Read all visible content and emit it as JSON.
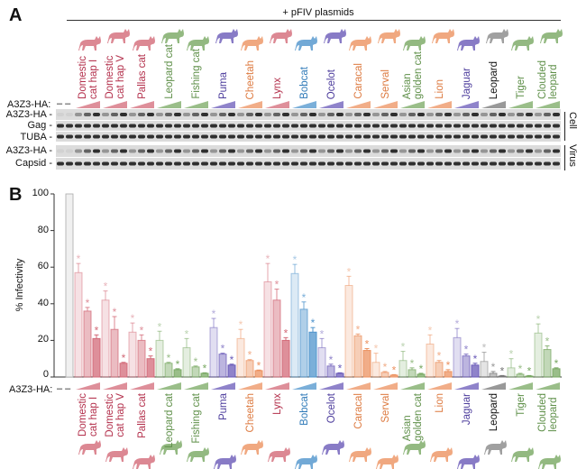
{
  "panel_a": {
    "label": "A",
    "header": "+ pFIV plasmids",
    "dose_label": "A3Z3-HA:",
    "control_marks": "– –",
    "rows": [
      "A3Z3-HA -",
      "Gag -",
      "TUBA -",
      "A3Z3-HA -",
      "Capsid -"
    ],
    "groups": [
      "Cell",
      "Virus"
    ]
  },
  "panel_b": {
    "label": "B",
    "dose_label": "A3Z3-HA:",
    "control_marks": "– –"
  },
  "species": [
    {
      "name": "Domestic\ncat hap I",
      "color": "#d36a78",
      "text": "#b32f4b"
    },
    {
      "name": "Domestic\ncat hap V",
      "color": "#d36a78",
      "text": "#b32f4b"
    },
    {
      "name": "Pallas cat",
      "color": "#d36a78",
      "text": "#b32f4b"
    },
    {
      "name": "Leopard cat",
      "color": "#78a862",
      "text": "#5e8f48"
    },
    {
      "name": "Fishing cat",
      "color": "#78a862",
      "text": "#5e8f48"
    },
    {
      "name": "Puma",
      "color": "#6a5ab8",
      "text": "#4c3c9c"
    },
    {
      "name": "Cheetah",
      "color": "#ec9260",
      "text": "#dd7a40"
    },
    {
      "name": "Lynx",
      "color": "#d36a78",
      "text": "#b32f4b"
    },
    {
      "name": "Bobcat",
      "color": "#4f94cc",
      "text": "#2f7ab8"
    },
    {
      "name": "Ocelot",
      "color": "#6a5ab8",
      "text": "#4c3c9c"
    },
    {
      "name": "Caracal",
      "color": "#ec9260",
      "text": "#dd7a40"
    },
    {
      "name": "Serval",
      "color": "#ec9260",
      "text": "#dd7a40"
    },
    {
      "name": "Asian\ngolden cat",
      "color": "#78a862",
      "text": "#5e8f48"
    },
    {
      "name": "Lion",
      "color": "#ec9260",
      "text": "#dd7a40"
    },
    {
      "name": "Jaguar",
      "color": "#6a5ab8",
      "text": "#4c3c9c"
    },
    {
      "name": "Leopard",
      "color": "#777777",
      "text": "#111111"
    },
    {
      "name": "Tiger",
      "color": "#78a862",
      "text": "#5e8f48"
    },
    {
      "name": "Clouded\nleopard",
      "color": "#78a862",
      "text": "#5e8f48"
    }
  ],
  "chart_data": {
    "type": "bar",
    "ylabel": "% Infectivity",
    "ylim": [
      0,
      100
    ],
    "yticks": [
      0,
      20,
      40,
      60,
      80,
      100
    ],
    "grid": false,
    "control": {
      "value": 100,
      "color": "#f0f0f0"
    },
    "doses_per_species": 3,
    "significance_marker": "*",
    "series_by_species": [
      {
        "species": "Domestic cat hap I",
        "values": [
          57,
          36,
          21
        ],
        "err": [
          5,
          2,
          2
        ]
      },
      {
        "species": "Domestic cat hap V",
        "values": [
          42,
          26,
          7.5
        ],
        "err": [
          5,
          7,
          0.5
        ]
      },
      {
        "species": "Pallas cat",
        "values": [
          24.5,
          20,
          10
        ],
        "err": [
          5,
          3,
          1.5
        ]
      },
      {
        "species": "Leopard cat",
        "values": [
          20,
          7.5,
          4
        ],
        "err": [
          5,
          0.5,
          0.5
        ]
      },
      {
        "species": "Fishing cat",
        "values": [
          16,
          5.5,
          2
        ],
        "err": [
          5,
          0.5,
          0.3
        ]
      },
      {
        "species": "Puma",
        "values": [
          27,
          12.5,
          6.5
        ],
        "err": [
          5,
          0.5,
          0.5
        ]
      },
      {
        "species": "Cheetah",
        "values": [
          21,
          9,
          3.5
        ],
        "err": [
          5,
          0.5,
          0.3
        ]
      },
      {
        "species": "Lynx",
        "values": [
          52,
          42,
          20
        ],
        "err": [
          10,
          6,
          1.5
        ]
      },
      {
        "species": "Bobcat",
        "values": [
          56.5,
          37,
          24.5
        ],
        "err": [
          5,
          4,
          2.5
        ]
      },
      {
        "species": "Ocelot",
        "values": [
          16,
          6,
          2
        ],
        "err": [
          5,
          1,
          0.3
        ]
      },
      {
        "species": "Caracal",
        "values": [
          50,
          22.5,
          14.5
        ],
        "err": [
          5,
          1,
          1
        ]
      },
      {
        "species": "Serval",
        "values": [
          8,
          2.5,
          1
        ],
        "err": [
          5,
          0.5,
          0.3
        ]
      },
      {
        "species": "Asian golden cat",
        "values": [
          9,
          4,
          1.5
        ],
        "err": [
          5,
          1,
          0.5
        ]
      },
      {
        "species": "Lion",
        "values": [
          18,
          8,
          3
        ],
        "err": [
          5,
          1,
          1
        ]
      },
      {
        "species": "Jaguar",
        "values": [
          21.5,
          11.5,
          6.5
        ],
        "err": [
          5,
          1,
          1
        ]
      },
      {
        "species": "Leopard",
        "values": [
          8.5,
          2,
          0.5
        ],
        "err": [
          5,
          1,
          0.3
        ]
      },
      {
        "species": "Tiger",
        "values": [
          5,
          1.5,
          0.5
        ],
        "err": [
          5,
          0.5,
          0.3
        ]
      },
      {
        "species": "Clouded leopard",
        "values": [
          24,
          15,
          4.5
        ],
        "err": [
          5,
          2,
          0.5
        ]
      }
    ]
  }
}
